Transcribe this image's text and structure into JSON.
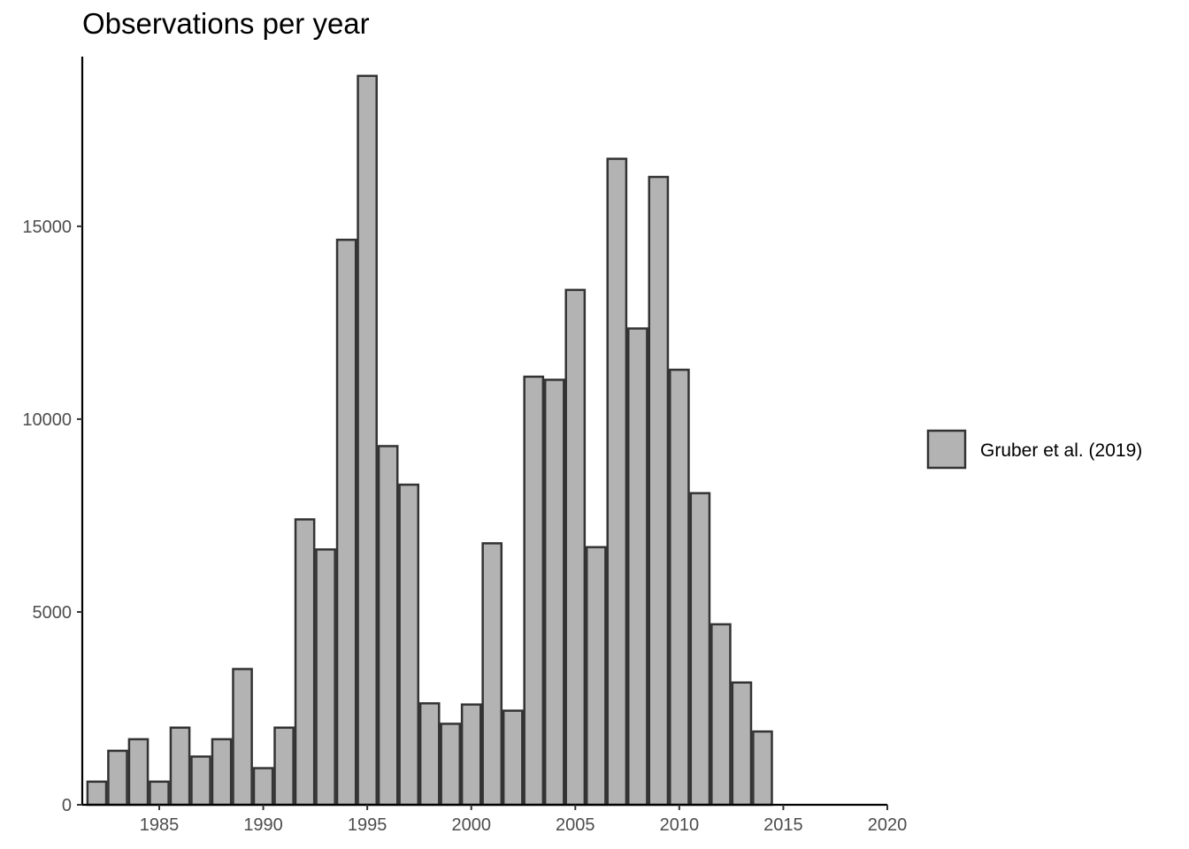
{
  "chart_data": {
    "type": "bar",
    "title": "Observations per year",
    "xlabel": "",
    "ylabel": "",
    "x": [
      1982,
      1983,
      1984,
      1985,
      1986,
      1987,
      1988,
      1989,
      1990,
      1991,
      1992,
      1993,
      1994,
      1995,
      1996,
      1997,
      1998,
      1999,
      2000,
      2001,
      2002,
      2003,
      2004,
      2005,
      2006,
      2007,
      2008,
      2009,
      2010,
      2011,
      2012,
      2013,
      2014
    ],
    "series": [
      {
        "name": "Gruber et al. (2019)",
        "color": "#b3b3b3",
        "values": [
          600,
          1400,
          1700,
          600,
          2000,
          1250,
          1700,
          3520,
          950,
          2000,
          7400,
          6620,
          14650,
          18900,
          9300,
          8300,
          2630,
          2100,
          2600,
          6780,
          2440,
          11100,
          11020,
          13350,
          6680,
          16750,
          12350,
          16280,
          11280,
          8080,
          4680,
          3170,
          1900
        ]
      }
    ],
    "xlim": [
      1981.3,
      2020
    ],
    "ylim": [
      0,
      19400
    ],
    "x_ticks": [
      "1985",
      "1990",
      "1995",
      "2000",
      "2005",
      "2010",
      "2015",
      "2020"
    ],
    "y_ticks": [
      "0",
      "5000",
      "10000",
      "15000"
    ],
    "bar_edge_color": "#333333",
    "grid": false,
    "legend_position": "right"
  }
}
